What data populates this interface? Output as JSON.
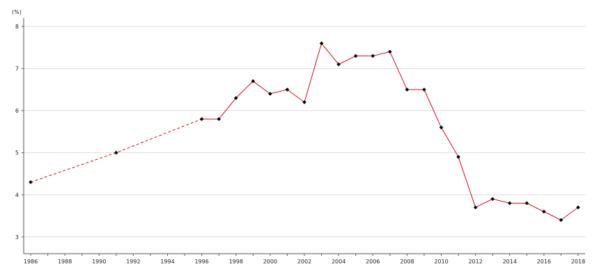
{
  "chart_data": {
    "type": "line",
    "unit_label": "(%)",
    "xlim": [
      1986,
      2018
    ],
    "ylim": [
      2.6,
      8.2
    ],
    "x_ticks": [
      1986,
      1988,
      1990,
      1992,
      1994,
      1996,
      1998,
      2000,
      2002,
      2004,
      2006,
      2008,
      2010,
      2012,
      2014,
      2016,
      2018
    ],
    "y_ticks": [
      3,
      4,
      5,
      6,
      7,
      8
    ],
    "grid": "horizontal",
    "line_color": "#e0001a",
    "marker_color": "#000000",
    "grid_color": "#d9d9d9",
    "series": [
      {
        "points": [
          {
            "x": 1986,
            "y": 4.3
          },
          {
            "x": 1991,
            "y": 5.0
          },
          {
            "x": 1996,
            "y": 5.8
          },
          {
            "x": 1997,
            "y": 5.8
          },
          {
            "x": 1998,
            "y": 6.3
          },
          {
            "x": 1999,
            "y": 6.7
          },
          {
            "x": 2000,
            "y": 6.4
          },
          {
            "x": 2001,
            "y": 6.5
          },
          {
            "x": 2002,
            "y": 6.2
          },
          {
            "x": 2003,
            "y": 7.6
          },
          {
            "x": 2004,
            "y": 7.1
          },
          {
            "x": 2005,
            "y": 7.3
          },
          {
            "x": 2006,
            "y": 7.3
          },
          {
            "x": 2007,
            "y": 7.4
          },
          {
            "x": 2008,
            "y": 6.5
          },
          {
            "x": 2009,
            "y": 6.5
          },
          {
            "x": 2010,
            "y": 5.6
          },
          {
            "x": 2011,
            "y": 4.9
          },
          {
            "x": 2012,
            "y": 3.7
          },
          {
            "x": 2013,
            "y": 3.9
          },
          {
            "x": 2014,
            "y": 3.8
          },
          {
            "x": 2015,
            "y": 3.8
          },
          {
            "x": 2016,
            "y": 3.6
          },
          {
            "x": 2017,
            "y": 3.4
          },
          {
            "x": 2018,
            "y": 3.7
          }
        ],
        "dashed_until_x": 1996
      }
    ]
  }
}
